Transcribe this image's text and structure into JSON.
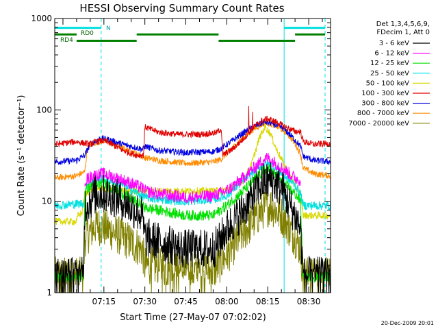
{
  "chart_data": {
    "type": "line",
    "title": "HESSI Observing Summary Count Rates",
    "xlabel": "Start Time (27-May-07 07:02:02)",
    "ylabel": "Count Rate (s⁻¹ detector⁻¹)",
    "y_scale": "log",
    "ylim": [
      1,
      1000
    ],
    "xlim_minutes": [
      -3,
      98
    ],
    "y_ticks": [
      "1",
      "10",
      "100",
      "1000"
    ],
    "x_ticks": [
      {
        "label": "07:15",
        "minutes": 15
      },
      {
        "label": "07:30",
        "minutes": 30
      },
      {
        "label": "07:45",
        "minutes": 45
      },
      {
        "label": "08:00",
        "minutes": 60
      },
      {
        "label": "08:15",
        "minutes": 75
      },
      {
        "label": "08:30",
        "minutes": 90
      }
    ],
    "legend": {
      "placement": "right",
      "header": [
        "Det 1,3,4,5,6,9,",
        "FDecim 1, Att 0"
      ],
      "entries": [
        {
          "label": "3 - 6 keV",
          "color": "#000000"
        },
        {
          "label": "6 - 12 keV",
          "color": "#ff00ff"
        },
        {
          "label": "12 - 25 keV",
          "color": "#00e000"
        },
        {
          "label": "25 - 50 keV",
          "color": "#00e0e0"
        },
        {
          "label": "50 - 100 keV",
          "color": "#d8d800"
        },
        {
          "label": "100 - 300 keV",
          "color": "#e00000"
        },
        {
          "label": "300 - 800 keV",
          "color": "#0000e0"
        },
        {
          "label": "800 - 7000 keV",
          "color": "#ff8c00"
        },
        {
          "label": "7000 - 20000 keV",
          "color": "#808000"
        }
      ]
    },
    "annotations": {
      "n_label": "N",
      "rd0_label": "RD0",
      "rd4_label": "RD4",
      "timestamp": "20-Dec-2009 20:01"
    },
    "series": [
      {
        "name": "3 - 6 keV",
        "color": "#000000",
        "noise": 0.22,
        "floor": 1.3,
        "points": [
          [
            -3,
            1.5
          ],
          [
            7.5,
            1.5
          ],
          [
            8,
            9
          ],
          [
            11,
            11
          ],
          [
            12,
            12
          ],
          [
            16,
            12
          ],
          [
            22,
            10
          ],
          [
            29,
            7
          ],
          [
            30,
            4
          ],
          [
            44,
            3
          ],
          [
            55,
            3
          ],
          [
            57,
            3.5
          ],
          [
            60,
            5
          ],
          [
            66,
            8
          ],
          [
            73,
            16
          ],
          [
            76,
            17
          ],
          [
            80,
            14
          ],
          [
            85,
            7
          ],
          [
            87,
            5
          ],
          [
            88,
            1.5
          ],
          [
            98,
            1.5
          ]
        ]
      },
      {
        "name": "6 - 12 keV",
        "color": "#ff00ff",
        "noise": 0.07,
        "points": [
          [
            8,
            17
          ],
          [
            11,
            19
          ],
          [
            15,
            20
          ],
          [
            22,
            17
          ],
          [
            29,
            14
          ],
          [
            30,
            13
          ],
          [
            35,
            12
          ],
          [
            45,
            11
          ],
          [
            55,
            11.5
          ],
          [
            60,
            13
          ],
          [
            66,
            18
          ],
          [
            73,
            28
          ],
          [
            75,
            30
          ],
          [
            78,
            26
          ],
          [
            85,
            18
          ],
          [
            87,
            17
          ]
        ]
      },
      {
        "name": "12 - 25 keV",
        "color": "#00e000",
        "noise": 0.06,
        "floor": 1.3,
        "points": [
          [
            -3,
            1.5
          ],
          [
            7.5,
            1.5
          ],
          [
            8,
            13
          ],
          [
            11,
            15
          ],
          [
            15,
            15.5
          ],
          [
            22,
            12
          ],
          [
            29,
            9
          ],
          [
            30,
            8.5
          ],
          [
            35,
            8
          ],
          [
            45,
            7
          ],
          [
            55,
            7
          ],
          [
            60,
            9
          ],
          [
            66,
            13
          ],
          [
            73,
            21
          ],
          [
            75,
            23
          ],
          [
            78,
            19
          ],
          [
            85,
            12
          ],
          [
            87,
            10
          ],
          [
            88,
            1.5
          ],
          [
            98,
            1.5
          ]
        ]
      },
      {
        "name": "25 - 50 keV",
        "color": "#00e0e0",
        "noise": 0.05,
        "points": [
          [
            -3,
            9
          ],
          [
            8,
            9.5
          ],
          [
            8.5,
            15
          ],
          [
            11,
            17
          ],
          [
            15,
            17.5
          ],
          [
            22,
            15
          ],
          [
            29,
            11.5
          ],
          [
            30,
            11
          ],
          [
            35,
            10.5
          ],
          [
            45,
            10
          ],
          [
            55,
            10.5
          ],
          [
            60,
            11.5
          ],
          [
            66,
            17
          ],
          [
            73,
            25
          ],
          [
            75,
            26
          ],
          [
            78,
            23
          ],
          [
            85,
            15
          ],
          [
            87,
            12
          ],
          [
            88,
            9
          ],
          [
            98,
            9
          ]
        ]
      },
      {
        "name": "50 - 100 keV",
        "color": "#d8d800",
        "noise": 0.04,
        "points": [
          [
            -3,
            6
          ],
          [
            5,
            6
          ],
          [
            5.5,
            7
          ],
          [
            7,
            7.5
          ],
          [
            8,
            12
          ],
          [
            10,
            13
          ],
          [
            12,
            14
          ],
          [
            14,
            14
          ],
          [
            20,
            13
          ],
          [
            30,
            13
          ],
          [
            40,
            13
          ],
          [
            58,
            13
          ],
          [
            62,
            14
          ],
          [
            66,
            17
          ],
          [
            69,
            25
          ],
          [
            72,
            50
          ],
          [
            74,
            65
          ],
          [
            76,
            55
          ],
          [
            78,
            38
          ],
          [
            82,
            22
          ],
          [
            85,
            15
          ],
          [
            87,
            12
          ],
          [
            88,
            7
          ],
          [
            98,
            7
          ]
        ]
      },
      {
        "name": "100 - 300 keV",
        "color": "#e00000",
        "noise": 0.035,
        "spikes": [
          [
            68,
            110
          ],
          [
            69.5,
            95
          ]
        ],
        "points": [
          [
            -3,
            42
          ],
          [
            5,
            45
          ],
          [
            8,
            43
          ],
          [
            10,
            42
          ],
          [
            12,
            45
          ],
          [
            15,
            46
          ],
          [
            18,
            42
          ],
          [
            22,
            36
          ],
          [
            27,
            32
          ],
          [
            29.5,
            32
          ],
          [
            30,
            65
          ],
          [
            35,
            57
          ],
          [
            42,
            54
          ],
          [
            50,
            54
          ],
          [
            56,
            56
          ],
          [
            58,
            62
          ],
          [
            58.5,
            32
          ],
          [
            62,
            37
          ],
          [
            66,
            48
          ],
          [
            70,
            65
          ],
          [
            73,
            77
          ],
          [
            75,
            80
          ],
          [
            78,
            74
          ],
          [
            81,
            66
          ],
          [
            85,
            58
          ],
          [
            87,
            58
          ],
          [
            88,
            45
          ],
          [
            92,
            42
          ],
          [
            98,
            43
          ]
        ]
      },
      {
        "name": "300 - 800 keV",
        "color": "#0000e0",
        "noise": 0.035,
        "points": [
          [
            -3,
            27
          ],
          [
            5,
            28
          ],
          [
            8,
            32
          ],
          [
            10,
            42
          ],
          [
            14,
            49
          ],
          [
            17,
            47
          ],
          [
            22,
            42
          ],
          [
            29.5,
            37
          ],
          [
            30,
            40
          ],
          [
            35,
            36
          ],
          [
            45,
            34
          ],
          [
            55,
            35
          ],
          [
            58,
            38
          ],
          [
            62,
            46
          ],
          [
            66,
            56
          ],
          [
            71,
            68
          ],
          [
            74,
            74
          ],
          [
            77,
            70
          ],
          [
            81,
            62
          ],
          [
            85,
            47
          ],
          [
            87,
            40
          ],
          [
            88,
            31
          ],
          [
            92,
            28
          ],
          [
            98,
            27
          ]
        ]
      },
      {
        "name": "800 - 7000 keV",
        "color": "#ff8c00",
        "noise": 0.035,
        "points": [
          [
            -3,
            18
          ],
          [
            5,
            19
          ],
          [
            8,
            21
          ],
          [
            9,
            40
          ],
          [
            12,
            44
          ],
          [
            15,
            46
          ],
          [
            18,
            43
          ],
          [
            22,
            38
          ],
          [
            27,
            33
          ],
          [
            30,
            30
          ],
          [
            35,
            28
          ],
          [
            45,
            26
          ],
          [
            55,
            27
          ],
          [
            58,
            29
          ],
          [
            62,
            38
          ],
          [
            66,
            50
          ],
          [
            70,
            62
          ],
          [
            73,
            70
          ],
          [
            75,
            72
          ],
          [
            78,
            67
          ],
          [
            82,
            56
          ],
          [
            85,
            43
          ],
          [
            87,
            33
          ],
          [
            88,
            23
          ],
          [
            92,
            20
          ],
          [
            98,
            19
          ]
        ]
      },
      {
        "name": "7000 - 20000 keV",
        "color": "#808000",
        "noise": 0.22,
        "floor": 1.2,
        "points": [
          [
            -3,
            1.5
          ],
          [
            7.5,
            1.5
          ],
          [
            8,
            4
          ],
          [
            11,
            5
          ],
          [
            12,
            5.5
          ],
          [
            16,
            5
          ],
          [
            22,
            4
          ],
          [
            29,
            3
          ],
          [
            30,
            2
          ],
          [
            44,
            1.7
          ],
          [
            55,
            1.7
          ],
          [
            57,
            2
          ],
          [
            60,
            2.6
          ],
          [
            66,
            4.5
          ],
          [
            73,
            8
          ],
          [
            76,
            9
          ],
          [
            80,
            7
          ],
          [
            85,
            4
          ],
          [
            87,
            3
          ],
          [
            88,
            1.5
          ],
          [
            98,
            1.5
          ]
        ]
      }
    ],
    "vertical_lines": [
      {
        "minutes": -3,
        "style": "solid",
        "color": "#00e0e0"
      },
      {
        "minutes": 14,
        "style": "dashed",
        "color": "#00e0e0"
      },
      {
        "minutes": 81,
        "style": "solid",
        "color": "#00e0e0"
      },
      {
        "minutes": 96,
        "style": "dashed",
        "color": "#00e0e0"
      }
    ],
    "flag_bars": [
      {
        "label": "N",
        "color": "#00e0e0",
        "y": 790,
        "segments": [
          [
            -3,
            14
          ],
          [
            81,
            96
          ]
        ],
        "thick": true
      },
      {
        "label": "RD0",
        "color": "#008000",
        "y": 670,
        "segments": [
          [
            -3,
            5
          ],
          [
            27,
            57
          ],
          [
            85,
            96
          ]
        ]
      },
      {
        "label": "RD4",
        "color": "#008000",
        "y": 570,
        "segments": [
          [
            5,
            27
          ],
          [
            57,
            85
          ]
        ]
      }
    ]
  }
}
